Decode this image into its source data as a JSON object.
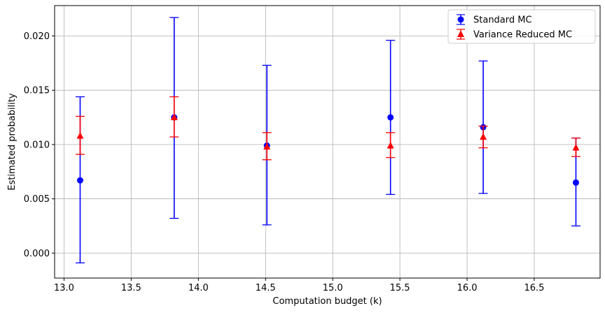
{
  "chart_data": {
    "type": "scatter",
    "title": "",
    "xlabel": "Computation budget (k)",
    "ylabel": "Estimated probability",
    "xlim": [
      12.93,
      16.99
    ],
    "ylim": [
      -0.0023,
      0.0228
    ],
    "xticks": [
      13.0,
      13.5,
      14.0,
      14.5,
      15.0,
      15.5,
      16.0,
      16.5
    ],
    "yticks": [
      0.0,
      0.005,
      0.01,
      0.015,
      0.02
    ],
    "x_tick_labels": [
      "13.0",
      "13.5",
      "14.0",
      "14.5",
      "15.0",
      "15.5",
      "16.0",
      "16.5"
    ],
    "y_tick_labels": [
      "0.000",
      "0.005",
      "0.010",
      "0.015",
      "0.020"
    ],
    "grid": true,
    "legend_position": "top-right",
    "series": [
      {
        "name": "Standard MC",
        "color": "#0000ff",
        "marker": "circle",
        "x": [
          13.12,
          13.82,
          14.51,
          15.43,
          16.12,
          16.81
        ],
        "y": [
          0.0067,
          0.0125,
          0.0099,
          0.0125,
          0.0116,
          0.0065
        ],
        "yerr_low": [
          -0.0009,
          0.0032,
          0.0026,
          0.0054,
          0.0055,
          0.0025
        ],
        "yerr_high": [
          0.0144,
          0.0217,
          0.0173,
          0.0196,
          0.0177,
          0.0106
        ]
      },
      {
        "name": "Variance Reduced MC",
        "color": "#ff0000",
        "marker": "triangle",
        "x": [
          13.12,
          13.82,
          14.51,
          15.43,
          16.12,
          16.81
        ],
        "y": [
          0.0108,
          0.0125,
          0.0098,
          0.0099,
          0.0107,
          0.0097
        ],
        "yerr_low": [
          0.0091,
          0.0107,
          0.0086,
          0.0088,
          0.0097,
          0.0089
        ],
        "yerr_high": [
          0.0126,
          0.0144,
          0.0111,
          0.0111,
          0.0117,
          0.0106
        ]
      }
    ]
  }
}
